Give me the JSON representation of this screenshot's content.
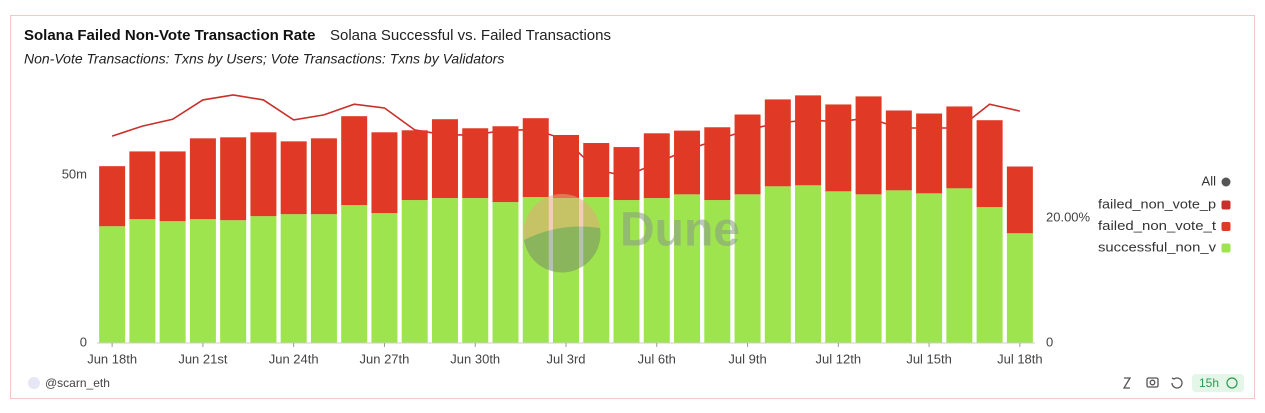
{
  "chart_data": {
    "type": "bar",
    "stacked": true,
    "title": "Solana Failed Non-Vote Transaction Rate",
    "tab": "Solana Successful vs. Failed Transactions",
    "subtitle": "Non-Vote Transactions: Txns by Users; Vote Transactions: Txns by Validators",
    "watermark": "Dune",
    "author": "@scarn_eth",
    "refresh": "15h",
    "legend_all": "All",
    "legend": "right",
    "categories": [
      "Jun 18th",
      null,
      null,
      "Jun 21st",
      null,
      null,
      "Jun 24th",
      null,
      null,
      "Jun 27th",
      null,
      null,
      "Jun 30th",
      null,
      null,
      "Jul 3rd",
      null,
      null,
      "Jul 6th",
      null,
      null,
      "Jul 9th",
      null,
      null,
      "Jul 12th",
      null,
      null,
      "Jul 15th",
      null,
      null,
      "Jul 18th"
    ],
    "series": [
      {
        "name": "failed_non_vote_p",
        "color": "#c9302a",
        "type": "line",
        "axis": "y2",
        "values": [
          33.1,
          34.7,
          35.8,
          38.9,
          39.7,
          38.9,
          35.7,
          36.5,
          38.2,
          37.6,
          34.1,
          33.3,
          33.3,
          34.1,
          34.1,
          32.5,
          27.7,
          26.7,
          28.8,
          30.9,
          32.5,
          34.1,
          35.2,
          35.7,
          35.4,
          36.0,
          34.4,
          34.4,
          34.4,
          38.2,
          37.1
        ]
      },
      {
        "name": "failed_non_vote_t",
        "color": "#e03a26",
        "values": [
          17.9,
          20.2,
          20.8,
          24.1,
          24.7,
          25.0,
          21.7,
          22.6,
          26.5,
          24.1,
          20.8,
          23.5,
          20.8,
          22.6,
          23.5,
          18.8,
          16.1,
          15.8,
          19.3,
          19.0,
          21.7,
          23.8,
          25.9,
          26.8,
          25.9,
          29.2,
          23.8,
          23.8,
          24.4,
          25.9,
          19.9
        ]
      },
      {
        "name": "successful_non_v",
        "color": "#9ee44e",
        "values": [
          34.8,
          36.9,
          36.3,
          36.9,
          36.6,
          37.8,
          38.4,
          38.4,
          41.1,
          38.7,
          42.6,
          43.2,
          43.2,
          42.0,
          43.5,
          43.2,
          43.5,
          42.6,
          43.2,
          44.3,
          42.6,
          44.3,
          46.7,
          47.0,
          45.2,
          44.3,
          45.5,
          44.6,
          46.1,
          40.5,
          32.7
        ]
      }
    ],
    "ylim": [
      0,
      76
    ],
    "yticks": [
      0,
      {
        "value": 50,
        "label": "50m"
      }
    ],
    "y2lim": [
      0,
      40.8
    ],
    "y2ticks": [
      0,
      {
        "value": 20,
        "label": "20.00%"
      }
    ]
  }
}
